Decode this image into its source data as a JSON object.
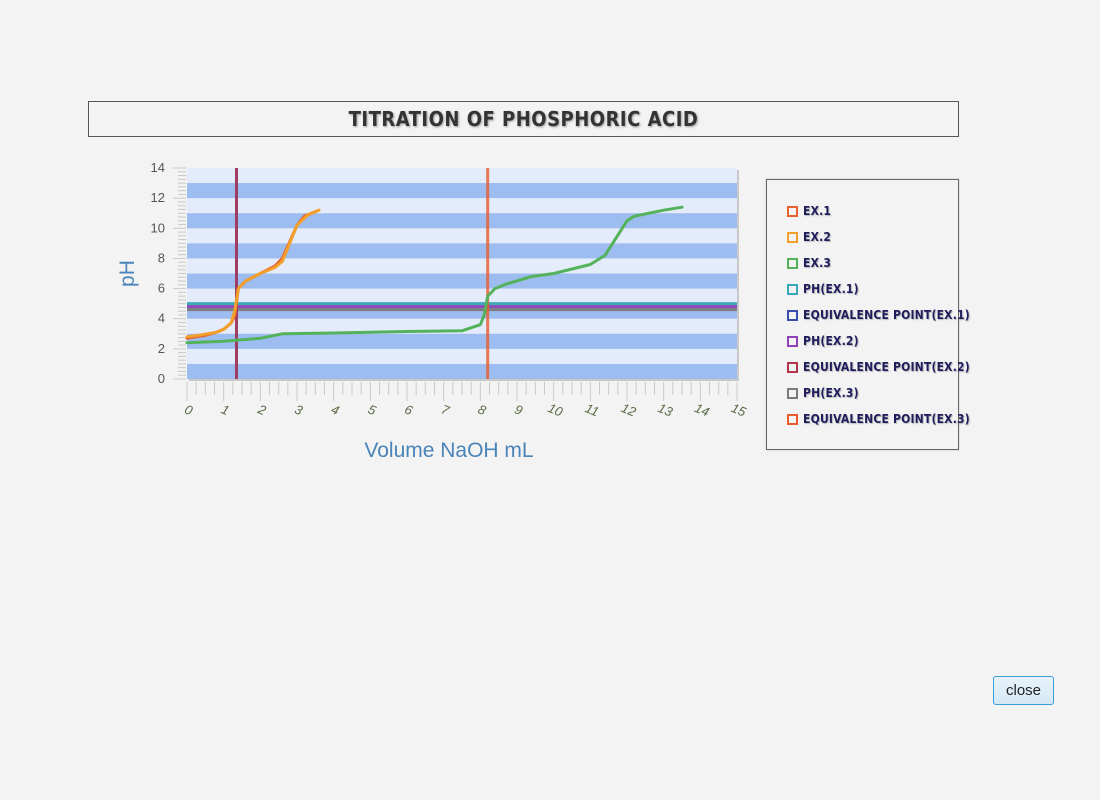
{
  "close_label": "close",
  "chart_data": {
    "type": "line",
    "title": "Titration of Phosphoric Acid",
    "xlabel": "Volume NaOH mL",
    "ylabel": "pH",
    "xlim": [
      0,
      15
    ],
    "ylim": [
      0,
      14
    ],
    "x_ticks": [
      0,
      1,
      2,
      3,
      4,
      5,
      6,
      7,
      8,
      9,
      10,
      11,
      12,
      13,
      14,
      15
    ],
    "y_ticks": [
      0,
      2,
      4,
      6,
      8,
      10,
      12,
      14
    ],
    "grid": "horizontal alternating bands",
    "legend_position": "right",
    "series": [
      {
        "name": "Ex.1",
        "color": "#e8622e",
        "kind": "curve",
        "x": [
          0,
          0.5,
          0.8,
          1.0,
          1.2,
          1.3,
          1.4,
          1.6,
          2.0,
          2.4,
          2.6,
          3.0,
          3.2,
          3.5
        ],
        "y": [
          2.7,
          2.9,
          3.1,
          3.3,
          3.7,
          4.2,
          6.0,
          6.5,
          7.0,
          7.5,
          8.0,
          10.2,
          10.8,
          11.1
        ]
      },
      {
        "name": "Ex.2",
        "color": "#f2a02b",
        "kind": "curve",
        "x": [
          0,
          0.3,
          0.8,
          1.0,
          1.2,
          1.3,
          1.4,
          1.6,
          2.0,
          2.4,
          2.6,
          3.0,
          3.3,
          3.6
        ],
        "y": [
          2.8,
          2.9,
          3.1,
          3.3,
          3.7,
          4.5,
          6.0,
          6.5,
          7.0,
          7.4,
          7.8,
          10.2,
          10.9,
          11.2
        ]
      },
      {
        "name": "Ex.3",
        "color": "#54b35a",
        "kind": "curve",
        "x": [
          0,
          1,
          2,
          2.6,
          4,
          6,
          7.5,
          8.0,
          8.1,
          8.2,
          8.4,
          8.7,
          9.4,
          10.0,
          11.0,
          11.4,
          12.0,
          12.2,
          13.0,
          13.5
        ],
        "y": [
          2.4,
          2.5,
          2.7,
          3.0,
          3.05,
          3.15,
          3.2,
          3.6,
          4.2,
          5.5,
          6.0,
          6.3,
          6.8,
          7.0,
          7.6,
          8.2,
          10.5,
          10.8,
          11.2,
          11.4
        ]
      },
      {
        "name": "pH(Ex.1)",
        "color": "#38a7b8",
        "kind": "hline",
        "y": 5.0
      },
      {
        "name": "Equivalence Point(Ex.1)",
        "color": "#3a4cb0",
        "kind": "vline",
        "x": 1.35
      },
      {
        "name": "pH(Ex.2)",
        "color": "#8e42b5",
        "kind": "hline",
        "y": 4.8
      },
      {
        "name": "Equivalence Point(Ex.2)",
        "color": "#b2344d",
        "kind": "vline",
        "x": 1.35
      },
      {
        "name": "pH(Ex.3)",
        "color": "#7a7a7a",
        "kind": "hline",
        "y": 4.6
      },
      {
        "name": "Equivalence Point(Ex.3)",
        "color": "#ea5b2c",
        "kind": "vline",
        "x": 8.2
      }
    ]
  }
}
